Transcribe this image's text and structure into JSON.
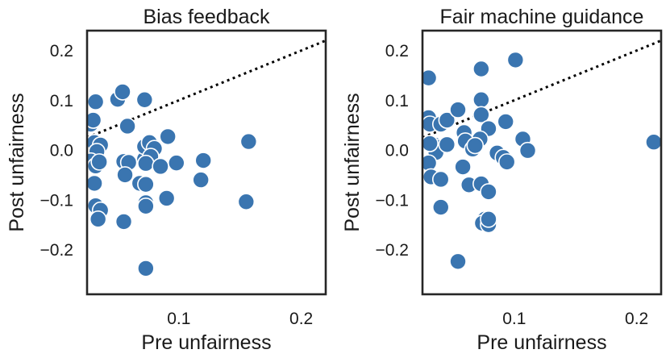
{
  "chart_data": [
    {
      "type": "scatter",
      "title": "Bias feedback",
      "xlabel": "Pre unfairness",
      "ylabel": "Post unfairness",
      "xlim": [
        0.025,
        0.22
      ],
      "ylim": [
        -0.29,
        0.24
      ],
      "xticks": [
        0.1,
        0.2
      ],
      "xtick_labels": [
        "0.1",
        "0.2"
      ],
      "yticks": [
        0.2,
        0.1,
        0.0,
        -0.1,
        -0.2
      ],
      "ytick_labels": [
        "0.2",
        "0.1",
        "0.0",
        "−0.1",
        "−0.2"
      ],
      "grid": false,
      "reference_line": "y = x (dotted)",
      "marker_color": "#3a75b0",
      "points": [
        [
          0.028,
          0.052
        ],
        [
          0.03,
          0.06
        ],
        [
          0.032,
          0.097
        ],
        [
          0.05,
          0.102
        ],
        [
          0.054,
          0.117
        ],
        [
          0.072,
          0.101
        ],
        [
          0.058,
          0.048
        ],
        [
          0.031,
          0.015
        ],
        [
          0.036,
          0.01
        ],
        [
          0.033,
          -0.003
        ],
        [
          0.028,
          -0.022
        ],
        [
          0.032,
          -0.032
        ],
        [
          0.035,
          -0.024
        ],
        [
          0.031,
          -0.067
        ],
        [
          0.032,
          -0.112
        ],
        [
          0.036,
          -0.121
        ],
        [
          0.034,
          -0.139
        ],
        [
          0.055,
          -0.144
        ],
        [
          0.055,
          -0.023
        ],
        [
          0.059,
          -0.025
        ],
        [
          0.056,
          -0.05
        ],
        [
          0.068,
          -0.067
        ],
        [
          0.073,
          -0.069
        ],
        [
          0.072,
          -0.018
        ],
        [
          0.072,
          0.007
        ],
        [
          0.076,
          0.015
        ],
        [
          0.08,
          0.003
        ],
        [
          0.077,
          -0.013
        ],
        [
          0.073,
          -0.027
        ],
        [
          0.085,
          -0.033
        ],
        [
          0.091,
          0.027
        ],
        [
          0.098,
          -0.026
        ],
        [
          0.12,
          -0.021
        ],
        [
          0.118,
          -0.06
        ],
        [
          0.09,
          -0.097
        ],
        [
          0.073,
          -0.106
        ],
        [
          0.073,
          -0.113
        ],
        [
          0.073,
          -0.238
        ],
        [
          0.157,
          0.017
        ],
        [
          0.155,
          -0.104
        ]
      ]
    },
    {
      "type": "scatter",
      "title": "Fair machine guidance",
      "xlabel": "Pre unfairness",
      "ylabel": "Post unfairness",
      "xlim": [
        0.025,
        0.22
      ],
      "ylim": [
        -0.29,
        0.24
      ],
      "xticks": [
        0.1,
        0.2
      ],
      "xtick_labels": [
        "0.1",
        "0.2"
      ],
      "yticks": [
        0.2,
        0.1,
        0.0,
        -0.1,
        -0.2
      ],
      "ytick_labels": [
        "0.2",
        "0.1",
        "0.0",
        "−0.1",
        "−0.2"
      ],
      "grid": false,
      "reference_line": "y = x (dotted)",
      "marker_color": "#3a75b0",
      "points": [
        [
          0.03,
          0.145
        ],
        [
          0.03,
          0.065
        ],
        [
          0.031,
          0.052
        ],
        [
          0.04,
          0.052
        ],
        [
          0.045,
          0.06
        ],
        [
          0.054,
          0.081
        ],
        [
          0.073,
          0.163
        ],
        [
          0.101,
          0.181
        ],
        [
          0.073,
          0.101
        ],
        [
          0.073,
          0.071
        ],
        [
          0.079,
          0.043
        ],
        [
          0.072,
          0.022
        ],
        [
          0.059,
          0.035
        ],
        [
          0.06,
          0.018
        ],
        [
          0.066,
          0.002
        ],
        [
          0.068,
          0.009
        ],
        [
          0.035,
          0.01
        ],
        [
          0.038,
          0.005
        ],
        [
          0.036,
          -0.005
        ],
        [
          0.045,
          0.011
        ],
        [
          0.031,
          0.013
        ],
        [
          0.03,
          -0.026
        ],
        [
          0.032,
          -0.054
        ],
        [
          0.04,
          -0.059
        ],
        [
          0.058,
          -0.034
        ],
        [
          0.063,
          -0.07
        ],
        [
          0.073,
          -0.068
        ],
        [
          0.079,
          -0.084
        ],
        [
          0.086,
          -0.006
        ],
        [
          0.093,
          0.057
        ],
        [
          0.091,
          -0.015
        ],
        [
          0.094,
          -0.024
        ],
        [
          0.107,
          0.022
        ],
        [
          0.111,
          -0.001
        ],
        [
          0.076,
          -0.139
        ],
        [
          0.074,
          -0.147
        ],
        [
          0.079,
          -0.15
        ],
        [
          0.079,
          -0.139
        ],
        [
          0.04,
          -0.115
        ],
        [
          0.054,
          -0.224
        ],
        [
          0.214,
          0.016
        ]
      ]
    }
  ]
}
